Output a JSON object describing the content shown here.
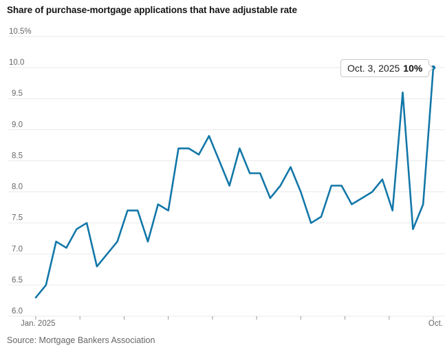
{
  "source": "Source: Mortgage Bankers Association",
  "colors": {
    "line": "#1277a8",
    "grid": "#e9e9e9",
    "tick": "#999999",
    "axis_text": "#666666",
    "title_text": "#141414",
    "callout_border": "#c9c9c9"
  },
  "chart_data": {
    "type": "line",
    "title": "Share of purchase-mortgage applications that have adjustable rate",
    "unit": "%",
    "grid": "horizontal",
    "x_axis": {
      "start_label": "Jan. 2025",
      "end_label": "Oct.",
      "month_tick_count": 10
    },
    "y_axis": {
      "ticks": [
        10.5,
        10.0,
        9.5,
        9.0,
        8.5,
        8.0,
        7.5,
        7.0,
        6.5,
        6.0
      ],
      "tick_labels": [
        "10.5%",
        "10.0",
        "9.5",
        "9.0",
        "8.5",
        "8.0",
        "7.5",
        "7.0",
        "6.5",
        "6.0"
      ],
      "ylim": [
        6.0,
        10.5
      ]
    },
    "series": [
      {
        "name": "Share of purchase-mortgage applications that have adjustable rate",
        "values": [
          6.3,
          6.5,
          7.2,
          7.1,
          7.4,
          7.5,
          6.8,
          7.0,
          7.2,
          7.7,
          7.7,
          7.2,
          7.8,
          7.7,
          8.7,
          8.7,
          8.6,
          8.9,
          8.5,
          8.1,
          8.7,
          8.3,
          8.3,
          7.9,
          8.1,
          8.4,
          8.0,
          7.5,
          7.6,
          8.1,
          8.1,
          7.8,
          7.9,
          8.0,
          8.2,
          7.7,
          9.6,
          7.4,
          7.8,
          10.0
        ]
      }
    ],
    "end_annotation": {
      "label": "Oct. 3, 2025",
      "value_label": "10%",
      "value": 10.0
    }
  }
}
